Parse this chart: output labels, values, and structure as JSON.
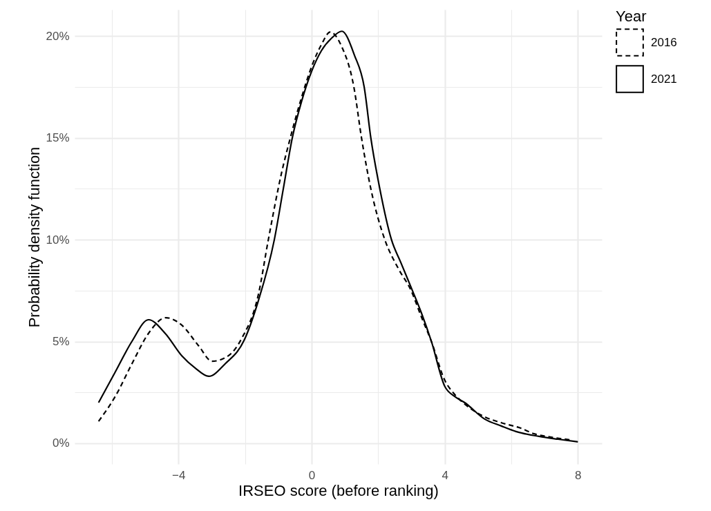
{
  "chart_data": {
    "type": "line",
    "xlabel": "IRSEO score (before ranking)",
    "ylabel": "Probability density function",
    "legend_title": "Year",
    "legend": "right",
    "grid": true,
    "xlim": [
      -7.12,
      8.72
    ],
    "ylim": [
      -1.02,
      21.3
    ],
    "xticks": [
      {
        "value": -6,
        "label": null
      },
      {
        "value": -4,
        "label": "−4"
      },
      {
        "value": -2,
        "label": null
      },
      0,
      {
        "value": 2,
        "label": null
      },
      4,
      {
        "value": 6,
        "label": null
      },
      8
    ],
    "yticks": [
      {
        "value": 0,
        "label": "0%"
      },
      {
        "value": 2.5,
        "label": null
      },
      {
        "value": 5,
        "label": "5%"
      },
      {
        "value": 7.5,
        "label": null
      },
      {
        "value": 10,
        "label": "10%"
      },
      {
        "value": 12.5,
        "label": null
      },
      {
        "value": 15,
        "label": "15%"
      },
      {
        "value": 17.5,
        "label": null
      },
      {
        "value": 20,
        "label": "20%"
      }
    ],
    "series": [
      {
        "name": "2016",
        "color": "#000000",
        "line_style": "dashed",
        "x": [
          -6.4,
          -5.9,
          -5.4,
          -4.9,
          -4.38,
          -3.9,
          -3.4,
          -2.99,
          -2.5,
          -2.1,
          -1.6,
          -1.3,
          -0.9,
          -0.64,
          -0.3,
          0,
          0.3,
          0.56,
          0.9,
          1.27,
          1.5,
          1.78,
          2.2,
          2.6,
          2.99,
          3.3,
          3.6,
          4,
          4.3,
          4.62,
          5.2,
          5.72,
          6.27,
          6.68,
          7.2,
          7.76
        ],
        "values": [
          1.08,
          2.3,
          3.9,
          5.4,
          6.17,
          5.8,
          4.8,
          4.03,
          4.3,
          5.15,
          7.3,
          10,
          13.3,
          15,
          17,
          18.5,
          19.6,
          20.2,
          19.5,
          17.5,
          15,
          12.5,
          10,
          8.6,
          7.5,
          6.2,
          5,
          3.1,
          2.4,
          1.9,
          1.3,
          1.0,
          0.75,
          0.47,
          0.3,
          0.17
        ]
      },
      {
        "name": "2021",
        "color": "#000000",
        "line_style": "solid",
        "x": [
          -6.4,
          -5.9,
          -5.4,
          -4.9,
          -4.4,
          -3.9,
          -3.5,
          -3.09,
          -2.6,
          -2.03,
          -1.6,
          -1.12,
          -0.85,
          -0.58,
          -0.3,
          0,
          0.3,
          0.6,
          0.91,
          1.29,
          1.58,
          1.78,
          2.05,
          2.4,
          2.68,
          3.03,
          3.3,
          3.6,
          4,
          4.3,
          4.6,
          5.2,
          5.7,
          6.14,
          6.83,
          7.4,
          8
        ],
        "values": [
          2.0,
          3.5,
          5.0,
          6.07,
          5.4,
          4.3,
          3.7,
          3.29,
          3.9,
          5.05,
          7,
          10,
          12.5,
          15,
          16.8,
          18.27,
          19.3,
          19.9,
          20.24,
          19.05,
          17.5,
          15,
          12.5,
          10,
          8.88,
          7.5,
          6.4,
          5,
          2.8,
          2.3,
          2.0,
          1.19,
          0.85,
          0.58,
          0.34,
          0.2,
          0.07
        ]
      }
    ]
  }
}
